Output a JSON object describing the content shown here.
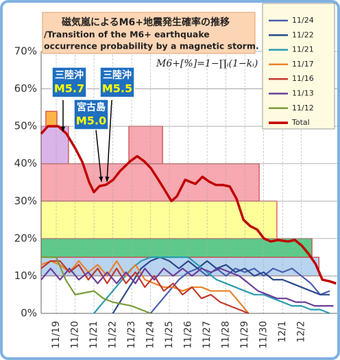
{
  "chart_data": {
    "type": "line",
    "title": [
      "磁気嵐によるM6+地震発生確率の推移",
      "/Transition of the M6+ earthquake",
      "occurrence probability by a magnetic storm."
    ],
    "formula": "M6+[%]=1−∏ᵢ(1−kᵢ)",
    "annotations": [
      {
        "place": "三陸沖",
        "mag": "M5.7"
      },
      {
        "place": "宮古島",
        "mag": "M5.0"
      },
      {
        "place": "三陸沖",
        "mag": "M5.5"
      }
    ],
    "xlim": [
      -0.8,
      14.9
    ],
    "xticks": [
      {
        "value": 0,
        "label": "11/19"
      },
      {
        "value": 1,
        "label": "11/20"
      },
      {
        "value": 2,
        "label": "11/21"
      },
      {
        "value": 3,
        "label": "11/22"
      },
      {
        "value": 4,
        "label": "11/23"
      },
      {
        "value": 5,
        "label": "11/24"
      },
      {
        "value": 6,
        "label": "11/25"
      },
      {
        "value": 7,
        "label": "11/26"
      },
      {
        "value": 8,
        "label": "11/27"
      },
      {
        "value": 9,
        "label": "11/28"
      },
      {
        "value": 10,
        "label": "11/29"
      },
      {
        "value": 11,
        "label": "11/30"
      },
      {
        "value": 12,
        "label": "12/1"
      },
      {
        "value": 13,
        "label": "12/2"
      }
    ],
    "ylim": [
      0,
      70
    ],
    "yticks": [
      {
        "value": 0,
        "label": "0%"
      },
      {
        "value": 10,
        "label": "10%"
      },
      {
        "value": 20,
        "label": "20%"
      },
      {
        "value": 30,
        "label": "30%"
      },
      {
        "value": 40,
        "label": "40%"
      },
      {
        "value": 50,
        "label": "50%"
      },
      {
        "value": 60,
        "label": "60%"
      },
      {
        "value": 70,
        "label": "70%"
      }
    ],
    "grid": true,
    "areas": [
      {
        "x": [
          -0.8,
          13.93
        ],
        "y": [
          10,
          15
        ],
        "color": "#b8d4f0",
        "edge": "#d04040"
      },
      {
        "x": [
          -0.8,
          13.56
        ],
        "y": [
          15,
          20
        ],
        "color": "#5ec98a",
        "edge": "#d04040"
      },
      {
        "x": [
          -0.8,
          11.7
        ],
        "y": [
          20,
          30
        ],
        "color": "#ffff99",
        "edge": "#d04040"
      },
      {
        "x": [
          -0.8,
          10.76
        ],
        "y": [
          30,
          40
        ],
        "color": "#f7a8b0",
        "edge": "#d04040"
      },
      {
        "x": [
          -0.8,
          0.65
        ],
        "y": [
          40,
          50
        ],
        "color": "#d8b4e8",
        "edge": "#d04040"
      },
      {
        "x": [
          3.85,
          5.64
        ],
        "y": [
          40,
          50
        ],
        "color": "#f7a8b0",
        "edge": "#d04040"
      },
      {
        "x": [
          -0.55,
          0.04
        ],
        "y": [
          50,
          54
        ],
        "color": "#ffb347",
        "edge": "#d04040"
      }
    ],
    "series": [
      {
        "name": "11/24",
        "color": "#4a5fb0",
        "x": [
          5,
          5.5,
          6,
          6.5,
          7,
          7.5,
          8,
          8.5,
          9,
          9.5,
          10,
          10.5,
          11,
          11.5,
          12,
          12.5,
          13,
          13.5,
          14,
          14.5
        ],
        "values": [
          0,
          3,
          6,
          9,
          11,
          12,
          10,
          12,
          10,
          12,
          11,
          12,
          10,
          12,
          11,
          12,
          10,
          8,
          5,
          6
        ]
      },
      {
        "name": "11/22",
        "color": "#2b4a8a",
        "x": [
          3,
          3.5,
          4,
          4.5,
          5,
          5.5,
          6,
          6.5,
          7,
          7.5,
          8,
          8.5,
          9,
          9.5,
          10,
          10.5,
          11,
          11.5,
          12,
          12.5,
          13,
          13.5,
          14,
          14.5
        ],
        "values": [
          0,
          4,
          8,
          12,
          14,
          15,
          14,
          12,
          14,
          12,
          14,
          12,
          13,
          11,
          12,
          10,
          11,
          9,
          9,
          8,
          7,
          6,
          5,
          5
        ]
      },
      {
        "name": "11/21",
        "color": "#2a9bb0",
        "x": [
          2,
          2.5,
          3,
          3.5,
          4,
          4.5,
          5,
          5.5,
          6,
          6.5,
          7,
          7.5,
          8,
          8.5,
          9,
          9.5,
          10,
          10.5,
          11,
          11.5,
          12,
          12.5,
          13,
          13.5,
          14,
          14.5
        ],
        "values": [
          0,
          3,
          6,
          9,
          12,
          14,
          15,
          15,
          15,
          15,
          15,
          13,
          11,
          9,
          8,
          7,
          6,
          5,
          5,
          4,
          3,
          2,
          2,
          1,
          1,
          0
        ]
      },
      {
        "name": "11/17",
        "color": "#e8822a",
        "x": [
          -0.8,
          -0.3,
          0.2,
          0.7,
          1.2,
          1.7,
          2.2,
          2.7,
          3.2,
          3.7,
          4.2,
          4.7,
          5.2,
          5.7,
          6.2,
          6.7,
          7.2,
          7.7,
          8.2,
          8.7,
          9.2,
          9.7,
          10.2
        ],
        "values": [
          13,
          14,
          13,
          11,
          14,
          11,
          13,
          10,
          14,
          10,
          13,
          9,
          8,
          7,
          7,
          6,
          7,
          7,
          6,
          6,
          6,
          3,
          0
        ]
      },
      {
        "name": "11/16",
        "color": "#c0392b",
        "x": [
          -0.8,
          -0.3,
          0.2,
          0.7,
          1.2,
          1.7,
          2.2,
          2.7,
          3.2,
          3.7,
          4.2,
          4.7,
          5.2,
          5.7,
          6.2,
          6.7,
          7.2,
          7.7,
          8.2,
          8.7,
          9.2,
          9.7,
          10.2
        ],
        "values": [
          12,
          14,
          14,
          11,
          13,
          9,
          12,
          8,
          12,
          8,
          11,
          7,
          10,
          6,
          8,
          5,
          7,
          4,
          5,
          3,
          2,
          1,
          0
        ]
      },
      {
        "name": "11/13",
        "color": "#6a3d9a",
        "x": [
          -0.8,
          -0.3,
          0.2,
          0.7,
          1.2,
          1.7,
          2.2,
          2.7,
          3.2,
          3.7,
          4.2,
          4.7,
          5.2,
          5.7,
          6.2,
          6.7,
          7.2,
          7.7,
          8.2,
          8.7,
          9.2,
          9.7,
          10.2,
          10.7,
          11.2,
          11.7,
          12.2,
          12.7,
          13.2,
          13.7,
          14.2,
          14.7
        ],
        "values": [
          9,
          12,
          9,
          12,
          9,
          11,
          8,
          11,
          8,
          11,
          8,
          12,
          9,
          12,
          10,
          12,
          10,
          12,
          11,
          12,
          11,
          10,
          8,
          6,
          5,
          4,
          4,
          3,
          3,
          2,
          2,
          2
        ]
      },
      {
        "name": "11/12",
        "color": "#7a9a3a",
        "x": [
          -0.8,
          0,
          0.5,
          1,
          1.5,
          2,
          2.5,
          3,
          3.5,
          4,
          4.5,
          5
        ],
        "values": [
          15,
          15,
          9,
          5,
          5.5,
          6,
          4,
          3,
          2.5,
          2,
          1,
          0
        ]
      },
      {
        "name": "Total",
        "color": "#c00000",
        "width": 3.5,
        "x": [
          -0.8,
          -0.44,
          0.11,
          0.55,
          1.02,
          1.38,
          1.75,
          2.0,
          2.29,
          2.65,
          3.02,
          3.38,
          3.93,
          4.29,
          4.65,
          5.02,
          5.38,
          5.75,
          6.11,
          6.4,
          6.84,
          7.38,
          7.75,
          8.11,
          8.47,
          8.84,
          9.2,
          9.56,
          9.93,
          10.29,
          10.65,
          11.02,
          11.38,
          11.75,
          12.29,
          12.65,
          13.02,
          13.38,
          13.75,
          14.11,
          14.47,
          14.84
        ],
        "values": [
          48,
          50,
          50,
          48,
          44,
          40.5,
          35,
          32.4,
          34,
          34.4,
          35.7,
          38,
          40.7,
          42,
          40.7,
          38.8,
          36,
          33,
          30,
          31.3,
          35.7,
          34.6,
          36.5,
          35.2,
          34.3,
          34.3,
          33.9,
          30.6,
          25,
          23.3,
          22.4,
          20,
          19.2,
          19.6,
          19.2,
          19.6,
          18.1,
          15.9,
          13.2,
          9,
          8.6,
          8
        ]
      }
    ]
  }
}
